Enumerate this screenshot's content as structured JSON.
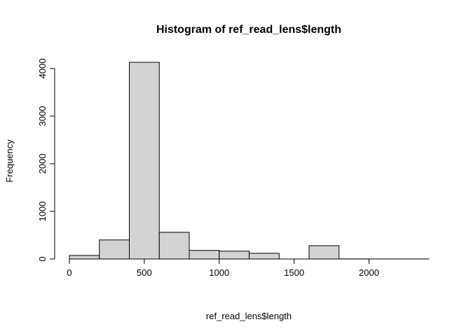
{
  "chart_data": {
    "type": "bar",
    "title": "Histogram of ref_read_lens$length",
    "xlabel": "ref_read_lens$length",
    "ylabel": "Frequency",
    "bins": [
      {
        "start": 0,
        "end": 200,
        "count": 75
      },
      {
        "start": 200,
        "end": 400,
        "count": 400
      },
      {
        "start": 400,
        "end": 600,
        "count": 4130
      },
      {
        "start": 600,
        "end": 800,
        "count": 560
      },
      {
        "start": 800,
        "end": 1000,
        "count": 180
      },
      {
        "start": 1000,
        "end": 1200,
        "count": 165
      },
      {
        "start": 1200,
        "end": 1400,
        "count": 120
      },
      {
        "start": 1400,
        "end": 1600,
        "count": 0
      },
      {
        "start": 1600,
        "end": 1800,
        "count": 280
      },
      {
        "start": 1800,
        "end": 2000,
        "count": 2
      },
      {
        "start": 2000,
        "end": 2200,
        "count": 1
      },
      {
        "start": 2200,
        "end": 2400,
        "count": 1
      }
    ],
    "xlim": [
      0,
      2400
    ],
    "ylim": [
      0,
      4130
    ],
    "x_ticks": [
      0,
      500,
      1000,
      1500,
      2000
    ],
    "y_ticks": [
      0,
      1000,
      2000,
      3000,
      4000
    ],
    "bar_color": "#d3d3d3",
    "grid": false
  }
}
